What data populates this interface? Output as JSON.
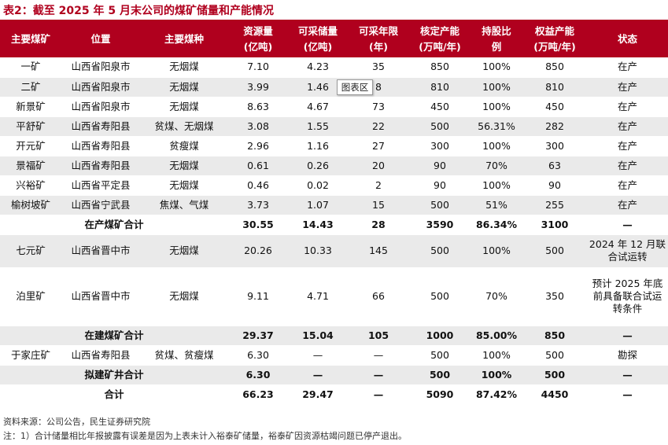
{
  "title": "表2：截至 2025 年 5 月末公司的煤矿储量和产能情况",
  "tooltip": "图表区",
  "headers": [
    [
      "主要煤矿",
      ""
    ],
    [
      "位置",
      ""
    ],
    [
      "主要煤种",
      ""
    ],
    [
      "资源量",
      "(亿吨)"
    ],
    [
      "可采储量",
      "(亿吨)"
    ],
    [
      "可采年限",
      "(年)"
    ],
    [
      "核定产能",
      "(万吨/年)"
    ],
    [
      "持股比",
      "例"
    ],
    [
      "权益产能",
      "(万吨/年)"
    ],
    [
      "状态",
      ""
    ]
  ],
  "rows": [
    [
      "一矿",
      "山西省阳泉市",
      "无烟煤",
      "7.10",
      "4.23",
      "35",
      "850",
      "100%",
      "850",
      "在产"
    ],
    [
      "二矿",
      "山西省阳泉市",
      "无烟煤",
      "3.99",
      "1.46",
      "8",
      "810",
      "100%",
      "810",
      "在产"
    ],
    [
      "新景矿",
      "山西省阳泉市",
      "无烟煤",
      "8.63",
      "4.67",
      "73",
      "450",
      "100%",
      "450",
      "在产"
    ],
    [
      "平舒矿",
      "山西省寿阳县",
      "贫煤、无烟煤",
      "3.08",
      "1.55",
      "22",
      "500",
      "56.31%",
      "282",
      "在产"
    ],
    [
      "开元矿",
      "山西省寿阳县",
      "贫瘦煤",
      "2.96",
      "1.16",
      "27",
      "300",
      "100%",
      "300",
      "在产"
    ],
    [
      "景福矿",
      "山西省寿阳县",
      "无烟煤",
      "0.61",
      "0.26",
      "20",
      "90",
      "70%",
      "63",
      "在产"
    ],
    [
      "兴裕矿",
      "山西省平定县",
      "无烟煤",
      "0.46",
      "0.02",
      "2",
      "90",
      "100%",
      "90",
      "在产"
    ],
    [
      "榆树坡矿",
      "山西省宁武县",
      "焦煤、气煤",
      "3.73",
      "1.07",
      "15",
      "500",
      "51%",
      "255",
      "在产"
    ],
    [
      "在产煤矿合计",
      "30.55",
      "14.43",
      "28",
      "3590",
      "86.34%",
      "3100",
      "—"
    ],
    [
      "七元矿",
      "山西省晋中市",
      "无烟煤",
      "20.26",
      "10.33",
      "145",
      "500",
      "100%",
      "500",
      "2024 年 12 月联合试运转"
    ],
    [
      "泊里矿",
      "山西省晋中市",
      "无烟煤",
      "9.11",
      "4.71",
      "66",
      "500",
      "70%",
      "350",
      "预计 2025 年底前具备联合试运转条件"
    ],
    [
      "在建煤矿合计",
      "29.37",
      "15.04",
      "105",
      "1000",
      "85.00%",
      "850",
      "—"
    ],
    [
      "于家庄矿",
      "山西省寿阳县",
      "贫煤、贫瘦煤",
      "6.30",
      "—",
      "—",
      "500",
      "100%",
      "500",
      "勘探"
    ],
    [
      "拟建矿井合计",
      "6.30",
      "—",
      "—",
      "500",
      "100%",
      "500",
      "—"
    ],
    [
      "合计",
      "66.23",
      "29.47",
      "—",
      "5090",
      "87.42%",
      "4450",
      "—"
    ]
  ],
  "notes": [
    "资料来源：公司公告，民生证券研究院",
    "注：1）合计储量相比年报披露有误差是因为上表未计入裕泰矿储量，裕泰矿因资源枯竭问题已停产退出。"
  ],
  "colors": {
    "accent": "#b0001e",
    "stripe": "#eaeaea"
  }
}
